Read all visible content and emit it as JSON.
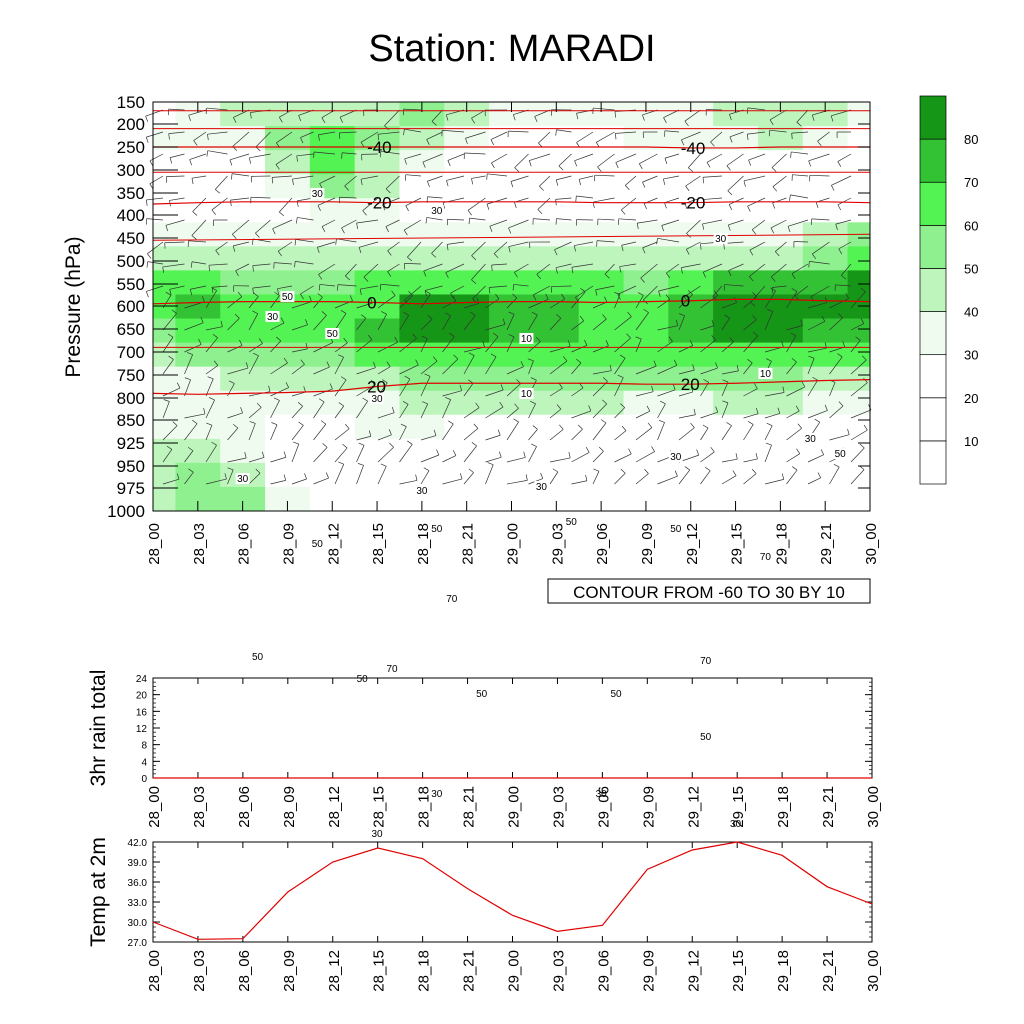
{
  "title": "Station: MARADI",
  "colors": {
    "fill_levels": [
      "#ffffff",
      "#ffffff",
      "#ffffff",
      "#f0fbf0",
      "#bdf5bd",
      "#8ef08e",
      "#52f352",
      "#33c233",
      "#169616"
    ],
    "isotherm": "#e00000",
    "temp_line": "#e00000"
  },
  "chart_data": [
    {
      "type": "heatmap",
      "name": "pressure-time cross section",
      "ylabel": "Pressure (hPa)",
      "y_ticks": [
        "150",
        "200",
        "250",
        "300",
        "350",
        "400",
        "450",
        "500",
        "550",
        "600",
        "650",
        "700",
        "750",
        "800",
        "850",
        "925",
        "950",
        "975",
        "1000"
      ],
      "x_ticks": [
        "28_00",
        "28_03",
        "28_06",
        "28_09",
        "28_12",
        "28_15",
        "28_18",
        "28_21",
        "29_00",
        "29_03",
        "29_06",
        "29_09",
        "29_12",
        "29_15",
        "29_18",
        "29_21",
        "30_00"
      ],
      "info_label": "CONTOUR FROM -60 TO 30 BY 10",
      "colorbar": {
        "levels": [
          10,
          20,
          30,
          40,
          50,
          60,
          70,
          80
        ]
      },
      "shaded_field": [
        [
          20,
          30,
          40,
          40,
          40,
          40,
          50,
          40,
          30,
          30,
          30,
          30,
          30,
          40,
          40,
          40,
          30
        ],
        [
          30,
          30,
          30,
          50,
          60,
          50,
          40,
          30,
          20,
          20,
          20,
          30,
          30,
          30,
          40,
          30,
          20
        ],
        [
          20,
          20,
          20,
          40,
          60,
          40,
          30,
          20,
          20,
          10,
          10,
          10,
          20,
          20,
          20,
          20,
          20
        ],
        [
          20,
          20,
          20,
          30,
          50,
          40,
          20,
          10,
          10,
          10,
          10,
          10,
          10,
          10,
          10,
          10,
          10
        ],
        [
          20,
          20,
          20,
          20,
          30,
          30,
          20,
          20,
          10,
          10,
          10,
          10,
          10,
          10,
          10,
          10,
          10
        ],
        [
          30,
          30,
          30,
          30,
          30,
          30,
          30,
          30,
          30,
          30,
          30,
          30,
          30,
          30,
          30,
          40,
          50
        ],
        [
          40,
          40,
          40,
          40,
          40,
          40,
          40,
          40,
          40,
          40,
          40,
          40,
          40,
          40,
          40,
          50,
          60
        ],
        [
          60,
          60,
          50,
          50,
          50,
          60,
          60,
          60,
          60,
          60,
          60,
          50,
          60,
          70,
          70,
          70,
          80
        ],
        [
          60,
          70,
          60,
          60,
          60,
          60,
          80,
          80,
          70,
          70,
          60,
          60,
          70,
          80,
          80,
          80,
          80
        ],
        [
          50,
          60,
          60,
          60,
          60,
          70,
          80,
          80,
          70,
          70,
          60,
          60,
          70,
          80,
          80,
          70,
          70
        ],
        [
          40,
          50,
          50,
          50,
          50,
          60,
          60,
          60,
          60,
          60,
          60,
          60,
          60,
          60,
          60,
          60,
          60
        ],
        [
          30,
          30,
          40,
          40,
          40,
          40,
          50,
          50,
          50,
          50,
          50,
          50,
          50,
          50,
          50,
          40,
          40
        ],
        [
          30,
          30,
          30,
          30,
          30,
          30,
          40,
          40,
          40,
          40,
          40,
          30,
          30,
          40,
          40,
          30,
          30
        ],
        [
          30,
          30,
          30,
          20,
          20,
          30,
          30,
          20,
          20,
          20,
          20,
          20,
          20,
          20,
          20,
          20,
          20
        ],
        [
          40,
          40,
          30,
          20,
          20,
          20,
          20,
          20,
          10,
          10,
          10,
          10,
          10,
          10,
          10,
          10,
          10
        ],
        [
          40,
          50,
          40,
          20,
          20,
          10,
          10,
          10,
          10,
          10,
          10,
          10,
          10,
          10,
          10,
          10,
          10
        ],
        [
          40,
          50,
          50,
          30,
          20,
          10,
          10,
          10,
          10,
          10,
          10,
          10,
          10,
          10,
          10,
          10,
          10
        ]
      ],
      "isotherms": [
        {
          "label": "-40",
          "values": [
            250,
            250,
            250,
            250,
            250,
            250,
            250,
            250,
            250,
            250,
            250,
            250,
            252,
            252,
            250,
            250,
            250
          ]
        },
        {
          "label": "-20",
          "values": [
            375,
            372,
            370,
            370,
            370,
            372,
            370,
            370,
            370,
            370,
            372,
            372,
            372,
            370,
            370,
            370,
            372
          ]
        },
        {
          "label": "0",
          "values": [
            595,
            592,
            590,
            590,
            590,
            592,
            595,
            592,
            590,
            590,
            592,
            590,
            588,
            585,
            585,
            588,
            590
          ]
        },
        {
          "label": "20",
          "values": [
            790,
            792,
            790,
            788,
            785,
            775,
            768,
            768,
            768,
            768,
            768,
            770,
            770,
            768,
            765,
            762,
            760
          ]
        }
      ],
      "contour_labels": [
        {
          "text": "30",
          "x": "28_11",
          "y": 195
        },
        {
          "text": "30",
          "x": "28_19",
          "y": 212
        },
        {
          "text": "30",
          "x": "29_14",
          "y": 240
        },
        {
          "text": "30",
          "x": "28_08",
          "y": 318
        },
        {
          "text": "50",
          "x": "28_09",
          "y": 298
        },
        {
          "text": "50",
          "x": "28_12",
          "y": 335
        },
        {
          "text": "30",
          "x": "28_15",
          "y": 400
        },
        {
          "text": "10",
          "x": "29_01",
          "y": 340
        },
        {
          "text": "10",
          "x": "29_01",
          "y": 395
        },
        {
          "text": "10",
          "x": "29_17",
          "y": 375
        },
        {
          "text": "30",
          "x": "28_06",
          "y": 480
        },
        {
          "text": "30",
          "x": "28_18",
          "y": 492
        },
        {
          "text": "30",
          "x": "29_02",
          "y": 488
        },
        {
          "text": "30",
          "x": "29_11",
          "y": 458
        },
        {
          "text": "30",
          "x": "29_20",
          "y": 440
        },
        {
          "text": "50",
          "x": "29_22",
          "y": 455
        },
        {
          "text": "50",
          "x": "28_11",
          "y": 545
        },
        {
          "text": "50",
          "x": "28_19",
          "y": 530
        },
        {
          "text": "50",
          "x": "29_04",
          "y": 523
        },
        {
          "text": "50",
          "x": "29_11",
          "y": 530
        },
        {
          "text": "70",
          "x": "29_17",
          "y": 558
        },
        {
          "text": "70",
          "x": "28_20",
          "y": 600
        },
        {
          "text": "50",
          "x": "28_07",
          "y": 658
        },
        {
          "text": "50",
          "x": "28_14",
          "y": 680
        },
        {
          "text": "70",
          "x": "28_16",
          "y": 670
        },
        {
          "text": "70",
          "x": "29_13",
          "y": 662
        },
        {
          "text": "50",
          "x": "28_22",
          "y": 695
        },
        {
          "text": "50",
          "x": "29_07",
          "y": 695
        },
        {
          "text": "50",
          "x": "29_13",
          "y": 738
        },
        {
          "text": "30",
          "x": "28_19",
          "y": 795
        },
        {
          "text": "30",
          "x": "29_06",
          "y": 795
        },
        {
          "text": "30",
          "x": "29_15",
          "y": 825
        },
        {
          "text": "30",
          "x": "28_15",
          "y": 835
        }
      ]
    },
    {
      "type": "line",
      "name": "3hr rain",
      "ylabel": "3hr rain total",
      "y_ticks": [
        "0",
        "4",
        "8",
        "12",
        "16",
        "20",
        "24"
      ],
      "ylim": [
        0,
        24
      ],
      "x_ticks": [
        "28_00",
        "28_03",
        "28_06",
        "28_09",
        "28_12",
        "28_15",
        "28_18",
        "28_21",
        "29_00",
        "29_03",
        "29_06",
        "29_09",
        "29_12",
        "29_15",
        "29_18",
        "29_21",
        "30_00"
      ],
      "values": [
        0,
        0,
        0,
        0,
        0,
        0,
        0,
        0,
        0,
        0,
        0,
        0,
        0,
        0,
        0,
        0,
        0
      ]
    },
    {
      "type": "line",
      "name": "2m temperature",
      "ylabel": "Temp at 2m",
      "y_ticks": [
        "27.0",
        "30.0",
        "33.0",
        "36.0",
        "39.0",
        "42.0"
      ],
      "ylim": [
        27,
        42
      ],
      "x_ticks": [
        "28_00",
        "28_03",
        "28_06",
        "28_09",
        "28_12",
        "28_15",
        "28_18",
        "28_21",
        "29_00",
        "29_03",
        "29_06",
        "29_09",
        "29_12",
        "29_15",
        "29_18",
        "29_21",
        "30_00"
      ],
      "values": [
        30.0,
        27.4,
        27.5,
        34.5,
        39.0,
        41.1,
        39.5,
        35.0,
        31.0,
        28.6,
        29.5,
        37.9,
        40.8,
        42.0,
        40.0,
        35.3,
        32.7
      ]
    }
  ]
}
